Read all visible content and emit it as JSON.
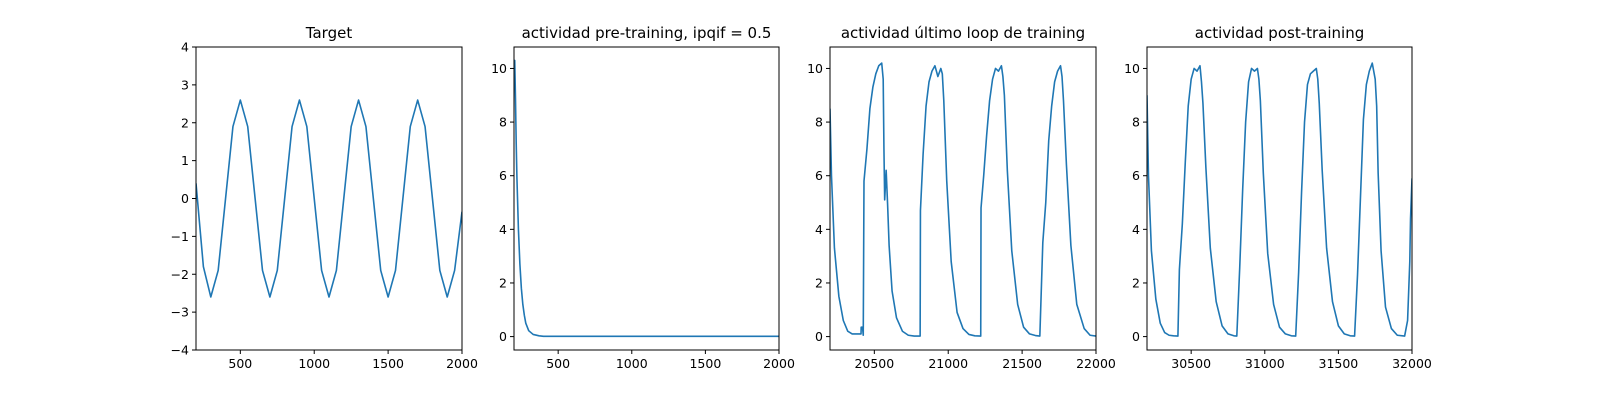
{
  "figure": {
    "background": "#ffffff"
  },
  "chart_data": [
    {
      "type": "line",
      "title": "Target",
      "xlabel": "",
      "ylabel": "",
      "xlim": [
        200,
        2000
      ],
      "ylim": [
        -4,
        4
      ],
      "xticks": [
        500,
        1000,
        1500,
        2000
      ],
      "yticks": [
        -4,
        -3,
        -2,
        -1,
        0,
        1,
        2,
        3,
        4
      ],
      "grid": false,
      "color": "#1f77b4",
      "series": [
        {
          "x": [
            200,
            250,
            300,
            350,
            400,
            450,
            500,
            550,
            600,
            650,
            700,
            750,
            800,
            850,
            900,
            950,
            1000,
            1050,
            1100,
            1150,
            1200,
            1250,
            1300,
            1350,
            1400,
            1450,
            1500,
            1550,
            1600,
            1650,
            1700,
            1750,
            1800,
            1850,
            1900,
            1950,
            2000
          ],
          "y": [
            0.4,
            -1.8,
            -2.6,
            -1.9,
            0,
            1.9,
            2.6,
            1.9,
            0,
            -1.9,
            -2.6,
            -1.9,
            0,
            1.9,
            2.6,
            1.9,
            0,
            -1.9,
            -2.6,
            -1.9,
            0,
            1.9,
            2.6,
            1.9,
            0,
            -1.9,
            -2.6,
            -1.9,
            0,
            1.9,
            2.6,
            1.9,
            0,
            -1.9,
            -2.6,
            -1.9,
            -0.35
          ]
        }
      ]
    },
    {
      "type": "line",
      "title": "actividad pre-training, ipqif = 0.5",
      "xlabel": "",
      "ylabel": "",
      "xlim": [
        200,
        2000
      ],
      "ylim": [
        -0.5,
        10.8
      ],
      "xticks": [
        500,
        1000,
        1500,
        2000
      ],
      "yticks": [
        0,
        2,
        4,
        6,
        8,
        10
      ],
      "grid": false,
      "color": "#1f77b4",
      "series": [
        {
          "x": [
            200,
            205,
            210,
            215,
            220,
            230,
            240,
            250,
            260,
            270,
            280,
            300,
            330,
            370,
            400,
            600,
            1000,
            1500,
            2000
          ],
          "y": [
            9.2,
            10.3,
            8.9,
            7.2,
            5.9,
            4.0,
            2.7,
            1.8,
            1.2,
            0.8,
            0.5,
            0.22,
            0.08,
            0.03,
            0.01,
            0.01,
            0.01,
            0.01,
            0.01
          ]
        }
      ]
    },
    {
      "type": "line",
      "title": "actividad último loop de training",
      "xlabel": "",
      "ylabel": "",
      "xlim": [
        20200,
        22000
      ],
      "ylim": [
        -0.5,
        10.8
      ],
      "xticks": [
        20500,
        21000,
        21500,
        22000
      ],
      "yticks": [
        0,
        2,
        4,
        6,
        8,
        10
      ],
      "grid": false,
      "color": "#1f77b4",
      "series": [
        {
          "x": [
            20200,
            20210,
            20230,
            20260,
            20290,
            20320,
            20350,
            20380,
            20400,
            20410,
            20411,
            20420,
            20425,
            20430,
            20450,
            20470,
            20490,
            20510,
            20530,
            20550,
            20560,
            20565,
            20570,
            20580,
            20590,
            20600,
            20620,
            20650,
            20690,
            20730,
            20770,
            20810,
            20812,
            20830,
            20850,
            20870,
            20890,
            20910,
            20930,
            20950,
            20960,
            20970,
            20990,
            21020,
            21060,
            21100,
            21140,
            21180,
            21220,
            21222,
            21240,
            21260,
            21280,
            21300,
            21320,
            21340,
            21360,
            21370,
            21380,
            21400,
            21430,
            21470,
            21510,
            21550,
            21590,
            21620,
            21640,
            21660,
            21680,
            21700,
            21720,
            21740,
            21760,
            21770,
            21780,
            21800,
            21830,
            21870,
            21920,
            21960,
            22000
          ],
          "y": [
            8.5,
            6.0,
            3.3,
            1.5,
            0.6,
            0.2,
            0.1,
            0.1,
            0.1,
            0.1,
            0.35,
            0.35,
            0.05,
            5.8,
            7.0,
            8.5,
            9.3,
            9.8,
            10.1,
            10.2,
            9.6,
            7.0,
            5.1,
            6.2,
            4.9,
            3.4,
            1.7,
            0.7,
            0.2,
            0.05,
            0.02,
            0.02,
            4.7,
            6.8,
            8.6,
            9.5,
            9.9,
            10.1,
            9.7,
            10.0,
            9.8,
            8.8,
            5.8,
            2.8,
            0.9,
            0.3,
            0.08,
            0.03,
            0.02,
            4.8,
            6.0,
            7.5,
            8.8,
            9.6,
            10.0,
            9.9,
            10.1,
            9.7,
            9.0,
            6.2,
            3.2,
            1.2,
            0.35,
            0.1,
            0.04,
            0.02,
            3.5,
            5.0,
            7.3,
            8.6,
            9.5,
            9.9,
            10.1,
            9.7,
            8.8,
            6.4,
            3.4,
            1.2,
            0.3,
            0.05,
            0.02
          ]
        }
      ]
    },
    {
      "type": "line",
      "title": "actividad post-training",
      "xlabel": "",
      "ylabel": "",
      "xlim": [
        30200,
        32000
      ],
      "ylim": [
        -0.5,
        10.8
      ],
      "xticks": [
        30500,
        31000,
        31500,
        32000
      ],
      "yticks": [
        0,
        2,
        4,
        6,
        8,
        10
      ],
      "grid": false,
      "color": "#1f77b4",
      "series": [
        {
          "x": [
            30200,
            30210,
            30230,
            30260,
            30290,
            30320,
            30350,
            30380,
            30410,
            30420,
            30440,
            30460,
            30480,
            30500,
            30520,
            30540,
            30560,
            30570,
            30580,
            30600,
            30630,
            30670,
            30710,
            30750,
            30790,
            30810,
            30830,
            30850,
            30870,
            30890,
            30910,
            30930,
            30950,
            30960,
            30970,
            30990,
            31020,
            31060,
            31100,
            31140,
            31180,
            31210,
            31230,
            31250,
            31270,
            31290,
            31310,
            31330,
            31350,
            31360,
            31370,
            31390,
            31420,
            31460,
            31500,
            31540,
            31580,
            31610,
            31630,
            31650,
            31670,
            31690,
            31710,
            31730,
            31750,
            31760,
            31770,
            31790,
            31820,
            31860,
            31900,
            31950,
            31970,
            31985,
            31990,
            32000
          ],
          "y": [
            9.0,
            6.0,
            3.2,
            1.4,
            0.5,
            0.15,
            0.05,
            0.03,
            0.02,
            2.5,
            4.2,
            6.5,
            8.6,
            9.6,
            10.0,
            9.9,
            10.1,
            9.5,
            8.7,
            6.3,
            3.3,
            1.3,
            0.4,
            0.1,
            0.03,
            0.02,
            2.6,
            5.5,
            8.0,
            9.5,
            10.0,
            9.9,
            10.0,
            9.6,
            8.8,
            6.1,
            3.1,
            1.2,
            0.35,
            0.1,
            0.03,
            0.02,
            2.4,
            5.4,
            8.0,
            9.4,
            9.8,
            9.9,
            10.0,
            9.6,
            8.7,
            6.2,
            3.3,
            1.3,
            0.4,
            0.1,
            0.03,
            0.02,
            2.3,
            5.2,
            8.1,
            9.4,
            9.9,
            10.2,
            9.6,
            8.6,
            6.1,
            3.2,
            1.1,
            0.3,
            0.05,
            0.02,
            0.6,
            2.8,
            4.4,
            5.9
          ]
        }
      ]
    }
  ]
}
